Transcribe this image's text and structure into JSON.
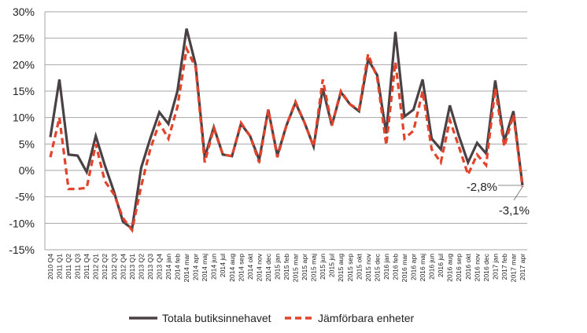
{
  "chart_data": {
    "type": "line",
    "title": "",
    "xlabel": "",
    "ylabel": "",
    "ylim": [
      -15,
      30
    ],
    "yticks": [
      -15,
      -10,
      -5,
      0,
      5,
      10,
      15,
      20,
      25,
      30
    ],
    "ytick_labels": [
      "-15%",
      "-10%",
      "-5%",
      "0%",
      "5%",
      "10%",
      "15%",
      "20%",
      "25%",
      "30%"
    ],
    "grid": true,
    "legend_position": "bottom",
    "categories": [
      "2010 Q4",
      "2011 Q1",
      "2011 Q2",
      "2011 Q3",
      "2011 Q4",
      "2012 Q1",
      "2012 Q2",
      "2012 Q3",
      "2012 Q4",
      "2013 Q1",
      "2013 Q2",
      "2013 Q3",
      "2013 Q4",
      "2014 jan",
      "2014 feb",
      "2014 mar",
      "2014 apr",
      "2014 maj",
      "2014 jun",
      "2014 jul",
      "2014 aug",
      "2014 sep",
      "2014 okt",
      "2014 nov",
      "2014 dec",
      "2015 jan",
      "2015 feb",
      "2015 mar",
      "2015 apr",
      "2015 maj",
      "2015 jun",
      "2015 jul",
      "2015 aug",
      "2015 sep",
      "2015 okt",
      "2015 nov",
      "2015 dec",
      "2016 jan",
      "2016 feb",
      "2016 mar",
      "2016 apr",
      "2016 maj",
      "2016 jun",
      "2016 jul",
      "2016 aug",
      "2016 sep",
      "2016 okt",
      "2016 nov",
      "2016 dec",
      "2017 jan",
      "2017 feb",
      "2017 mar",
      "2017 apr"
    ],
    "series": [
      {
        "name": "Totala butiksinnehavet",
        "color": "#4a4144",
        "dash": false,
        "values": [
          6.3,
          17.2,
          3.0,
          2.8,
          -0.3,
          6.5,
          1.0,
          -4.0,
          -9.7,
          -11.0,
          0.5,
          6.0,
          11.0,
          8.8,
          15.0,
          26.8,
          20.0,
          2.5,
          8.2,
          3.0,
          2.7,
          8.8,
          6.5,
          2.0,
          11.5,
          2.8,
          8.5,
          12.8,
          9.0,
          4.5,
          15.5,
          8.5,
          14.8,
          12.5,
          11.2,
          21.0,
          18.0,
          7.0,
          26.2,
          10.2,
          11.5,
          17.2,
          6.0,
          4.0,
          12.3,
          6.5,
          1.5,
          5.2,
          3.2,
          17.0,
          5.5,
          11.2,
          -2.8
        ]
      },
      {
        "name": "Jämförbara enheter",
        "color": "#e2432a",
        "dash": true,
        "values": [
          2.5,
          10.0,
          -3.5,
          -3.5,
          -3.3,
          5.0,
          -2.0,
          -4.5,
          -9.0,
          -11.3,
          -3.0,
          4.0,
          9.0,
          6.0,
          12.0,
          23.0,
          19.5,
          1.5,
          8.0,
          3.0,
          2.7,
          9.0,
          6.5,
          1.5,
          11.5,
          2.5,
          8.5,
          13.0,
          9.0,
          4.5,
          17.2,
          8.5,
          15.0,
          12.5,
          11.5,
          22.0,
          17.5,
          4.8,
          20.5,
          6.0,
          7.5,
          15.0,
          4.0,
          1.5,
          9.5,
          4.5,
          -0.8,
          3.0,
          1.0,
          15.5,
          4.5,
          10.5,
          -3.1
        ]
      }
    ],
    "annotations": [
      "-2,8%",
      "-3,1%"
    ]
  }
}
